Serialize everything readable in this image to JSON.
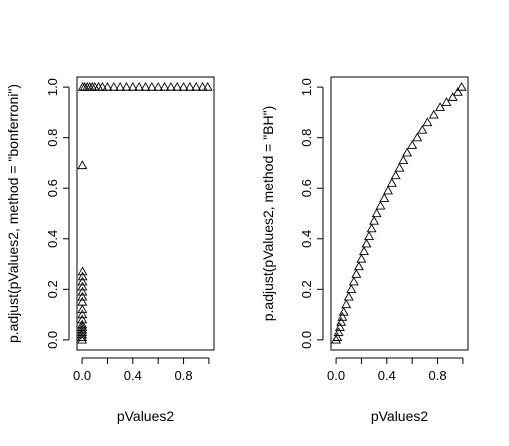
{
  "chart_data": [
    {
      "type": "scatter",
      "marker": "open-triangle",
      "xlabel": "pValues2",
      "ylabel": "p.adjust(pValues2, method = \"bonferroni\")",
      "x_ticks": [
        0.0,
        0.4,
        0.8
      ],
      "x_tick_labels": [
        "0.0",
        "0.4",
        "0.8"
      ],
      "y_ticks": [
        0.0,
        0.2,
        0.4,
        0.6,
        0.8,
        1.0
      ],
      "y_tick_labels": [
        "0.0",
        "0.2",
        "0.4",
        "0.6",
        "0.8",
        "1.0"
      ],
      "xlim": [
        -0.04,
        1.04
      ],
      "ylim": [
        -0.04,
        1.04
      ],
      "grid": false,
      "points": [
        [
          0.0,
          0.0
        ],
        [
          0.0,
          0.01
        ],
        [
          0.0,
          0.02
        ],
        [
          0.001,
          0.03
        ],
        [
          0.001,
          0.04
        ],
        [
          0.001,
          0.05
        ],
        [
          0.001,
          0.06
        ],
        [
          0.001,
          0.08
        ],
        [
          0.002,
          0.1
        ],
        [
          0.002,
          0.12
        ],
        [
          0.002,
          0.15
        ],
        [
          0.002,
          0.17
        ],
        [
          0.003,
          0.19
        ],
        [
          0.003,
          0.21
        ],
        [
          0.003,
          0.23
        ],
        [
          0.004,
          0.25
        ],
        [
          0.004,
          0.27
        ],
        [
          0.002,
          0.69
        ],
        [
          0.005,
          1.0
        ],
        [
          0.02,
          1.0
        ],
        [
          0.04,
          1.0
        ],
        [
          0.06,
          1.0
        ],
        [
          0.08,
          1.0
        ],
        [
          0.1,
          1.0
        ],
        [
          0.13,
          1.0
        ],
        [
          0.16,
          1.0
        ],
        [
          0.2,
          1.0
        ],
        [
          0.25,
          1.0
        ],
        [
          0.3,
          1.0
        ],
        [
          0.35,
          1.0
        ],
        [
          0.4,
          1.0
        ],
        [
          0.45,
          1.0
        ],
        [
          0.5,
          1.0
        ],
        [
          0.55,
          1.0
        ],
        [
          0.6,
          1.0
        ],
        [
          0.65,
          1.0
        ],
        [
          0.7,
          1.0
        ],
        [
          0.75,
          1.0
        ],
        [
          0.8,
          1.0
        ],
        [
          0.85,
          1.0
        ],
        [
          0.9,
          1.0
        ],
        [
          0.95,
          1.0
        ],
        [
          0.99,
          1.0
        ]
      ]
    },
    {
      "type": "scatter",
      "marker": "open-triangle",
      "xlabel": "pValues2",
      "ylabel": "p.adjust(pValues2, method = \"BH\")",
      "x_ticks": [
        0.0,
        0.4,
        0.8
      ],
      "x_tick_labels": [
        "0.0",
        "0.4",
        "0.8"
      ],
      "y_ticks": [
        0.0,
        0.2,
        0.4,
        0.6,
        0.8,
        1.0
      ],
      "y_tick_labels": [
        "0.0",
        "0.2",
        "0.4",
        "0.6",
        "0.8",
        "1.0"
      ],
      "xlim": [
        -0.04,
        1.04
      ],
      "ylim": [
        -0.04,
        1.04
      ],
      "grid": false,
      "points": [
        [
          0.0,
          0.0
        ],
        [
          0.01,
          0.01
        ],
        [
          0.02,
          0.03
        ],
        [
          0.03,
          0.05
        ],
        [
          0.04,
          0.07
        ],
        [
          0.05,
          0.09
        ],
        [
          0.06,
          0.11
        ],
        [
          0.08,
          0.14
        ],
        [
          0.1,
          0.17
        ],
        [
          0.12,
          0.2
        ],
        [
          0.14,
          0.23
        ],
        [
          0.16,
          0.26
        ],
        [
          0.18,
          0.29
        ],
        [
          0.2,
          0.32
        ],
        [
          0.22,
          0.35
        ],
        [
          0.24,
          0.38
        ],
        [
          0.26,
          0.41
        ],
        [
          0.28,
          0.44
        ],
        [
          0.3,
          0.47
        ],
        [
          0.32,
          0.5
        ],
        [
          0.35,
          0.53
        ],
        [
          0.38,
          0.56
        ],
        [
          0.41,
          0.59
        ],
        [
          0.44,
          0.62
        ],
        [
          0.47,
          0.65
        ],
        [
          0.5,
          0.68
        ],
        [
          0.53,
          0.71
        ],
        [
          0.56,
          0.74
        ],
        [
          0.6,
          0.77
        ],
        [
          0.64,
          0.8
        ],
        [
          0.68,
          0.83
        ],
        [
          0.72,
          0.86
        ],
        [
          0.77,
          0.89
        ],
        [
          0.82,
          0.92
        ],
        [
          0.87,
          0.94
        ],
        [
          0.92,
          0.96
        ],
        [
          0.96,
          0.98
        ],
        [
          0.99,
          1.0
        ]
      ]
    }
  ]
}
